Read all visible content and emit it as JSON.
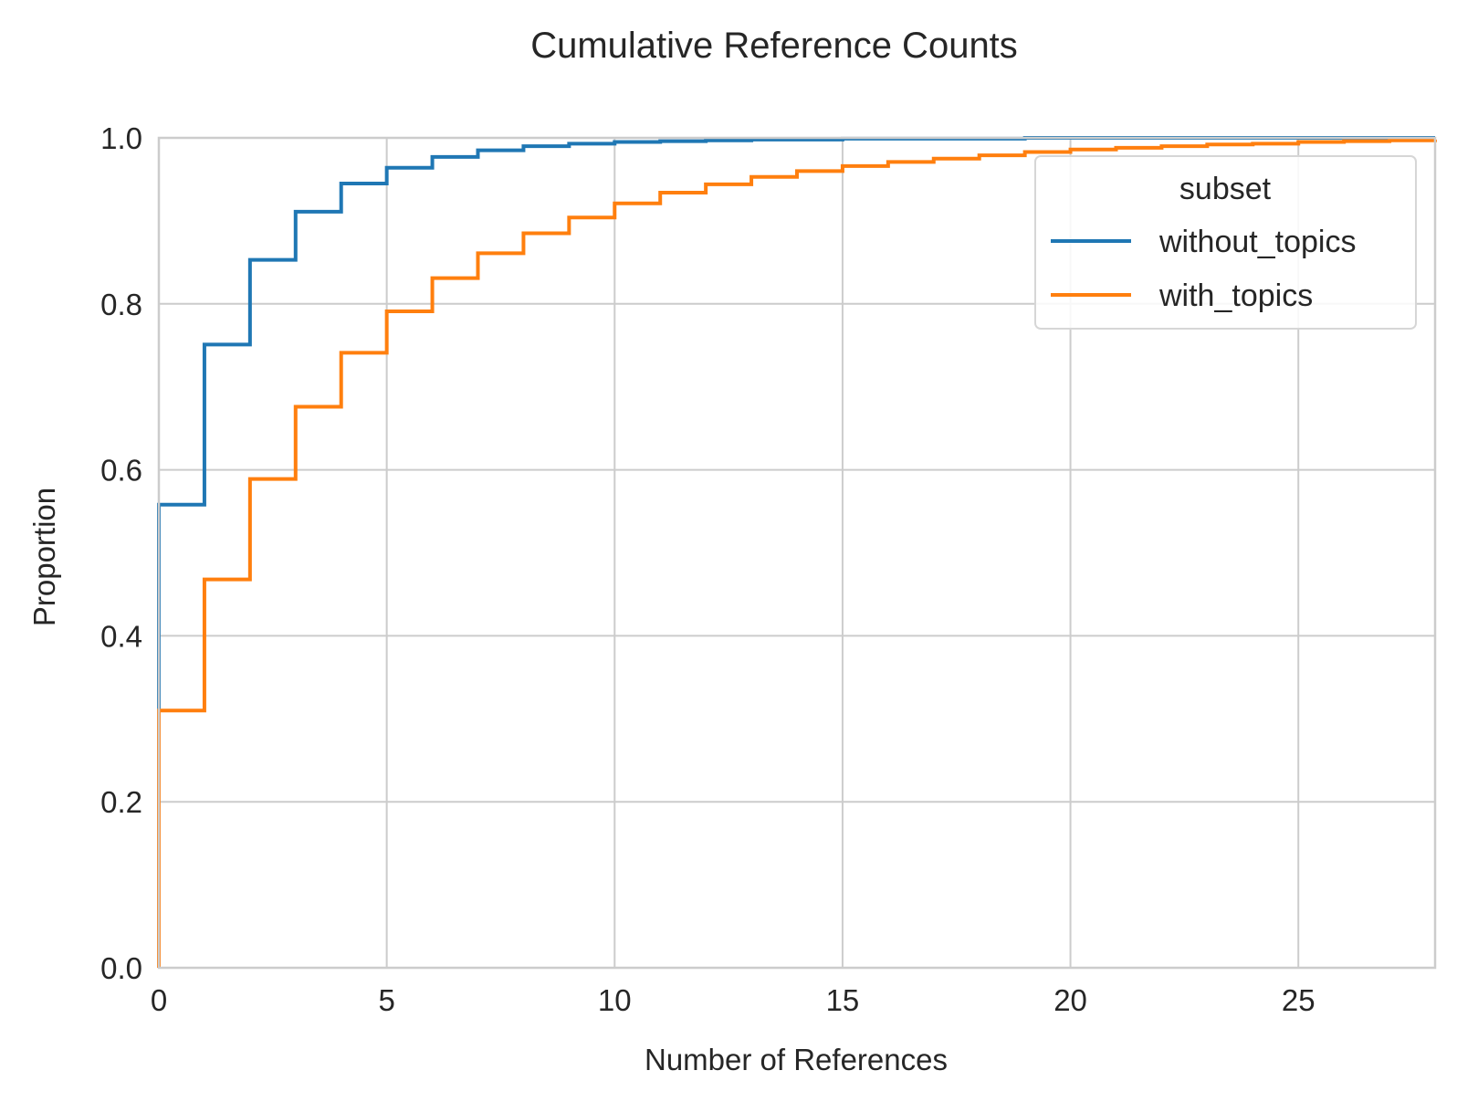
{
  "chart_data": {
    "type": "line",
    "drawstyle": "steps-post",
    "title": "Cumulative Reference Counts",
    "xlabel": "Number of References",
    "ylabel": "Proportion",
    "xlim": [
      0,
      28
    ],
    "ylim": [
      0,
      1
    ],
    "xticks": [
      0,
      5,
      10,
      15,
      20,
      25
    ],
    "xtick_labels": [
      "0",
      "5",
      "10",
      "15",
      "20",
      "25"
    ],
    "yticks": [
      0,
      0.2,
      0.4,
      0.6,
      0.8,
      1.0
    ],
    "ytick_labels": [
      "0.0",
      "0.2",
      "0.4",
      "0.6",
      "0.8",
      "1.0"
    ],
    "grid": true,
    "legend": {
      "title": "subset",
      "position": "top-right"
    },
    "series": [
      {
        "name": "without_topics",
        "color": "#1f77b4",
        "x": [
          0,
          1,
          2,
          3,
          4,
          5,
          6,
          7,
          8,
          9,
          10,
          11,
          12,
          13,
          14,
          15,
          16,
          17,
          18,
          19,
          20,
          21,
          22,
          23,
          24,
          25,
          26,
          27,
          28
        ],
        "y": [
          0.558,
          0.751,
          0.853,
          0.911,
          0.945,
          0.964,
          0.977,
          0.985,
          0.99,
          0.993,
          0.995,
          0.996,
          0.997,
          0.998,
          0.998,
          0.999,
          0.999,
          0.999,
          0.999,
          1.0,
          1.0,
          1.0,
          1.0,
          1.0,
          1.0,
          1.0,
          1.0,
          1.0,
          1.0
        ]
      },
      {
        "name": "with_topics",
        "color": "#ff7f0e",
        "x": [
          0,
          1,
          2,
          3,
          4,
          5,
          6,
          7,
          8,
          9,
          10,
          11,
          12,
          13,
          14,
          15,
          16,
          17,
          18,
          19,
          20,
          21,
          22,
          23,
          24,
          25,
          26,
          27,
          28
        ],
        "y": [
          0.31,
          0.468,
          0.589,
          0.676,
          0.741,
          0.791,
          0.831,
          0.861,
          0.885,
          0.904,
          0.921,
          0.934,
          0.944,
          0.953,
          0.96,
          0.966,
          0.971,
          0.975,
          0.979,
          0.983,
          0.986,
          0.988,
          0.99,
          0.992,
          0.993,
          0.995,
          0.996,
          0.997,
          0.998
        ]
      }
    ]
  }
}
